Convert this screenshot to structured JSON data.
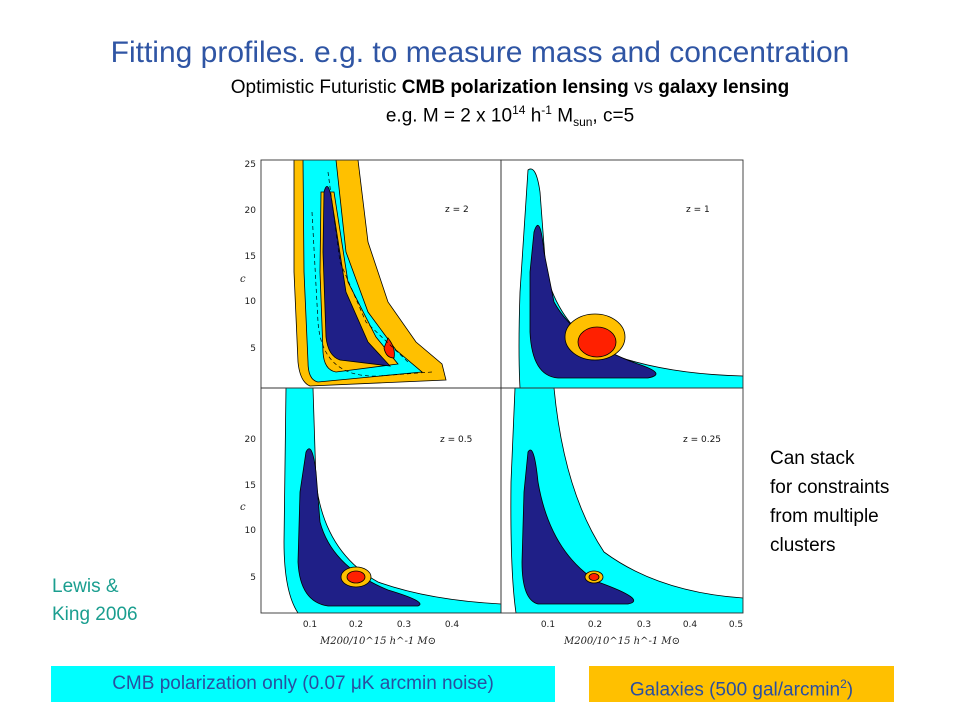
{
  "header": {
    "title": "Fitting profiles. e.g. to measure mass and concentration",
    "subtitle_pre": "Optimistic Futuristic ",
    "subtitle_bold1": "CMB polarization lensing",
    "subtitle_mid": " vs ",
    "subtitle_bold2": "galaxy lensing",
    "example_pre": "e.g. M = 2 x 10",
    "example_exp": "14",
    "example_h": " h",
    "example_hexp": "-1",
    "example_m": " M",
    "example_msub": "sun",
    "example_post": ", c=5"
  },
  "credit": {
    "line1": "Lewis &",
    "line2": "King 2006"
  },
  "note": {
    "lines": [
      "Can stack",
      "for constraints",
      "from multiple",
      "clusters"
    ]
  },
  "legend": {
    "cmb": "CMB polarization only (0.07 μK  arcmin noise)",
    "gal_pre": "Galaxies (500 gal/arcmin",
    "gal_exp": "2",
    "gal_post": ")"
  },
  "colors": {
    "cmb_outer": "#00ffff",
    "inner": "#1f1f87",
    "gal_outer": "#ffc000",
    "gal_inner": "#ff2000",
    "cmb_legend_bg": "#00ffff",
    "gal_legend_bg": "#ffc000",
    "title": "#2f55a4",
    "credit": "#1a9e8f"
  },
  "chart_data": {
    "type": "contour",
    "layout": "2x2 panels",
    "ylabel": "c",
    "xlabel": "M200/10^15 h^-1 M⊙",
    "xlim": [
      0,
      0.5
    ],
    "ylim": [
      0,
      25
    ],
    "x_ticks": [
      "0.1",
      "0.2",
      "0.3",
      "0.4",
      "0.5"
    ],
    "y_ticks_top": [
      "5",
      "10",
      "15",
      "20",
      "25"
    ],
    "y_ticks_bottom": [
      "5",
      "10",
      "15",
      "20"
    ],
    "fiducial": {
      "M": 0.2,
      "c": 5
    },
    "panels": [
      {
        "label": "z = 2",
        "position": "top-left",
        "contours": [
          "CMB 68%",
          "CMB 95%",
          "Galaxies 68%",
          "Galaxies 95%"
        ]
      },
      {
        "label": "z = 1",
        "position": "top-right",
        "contours": [
          "CMB 68%",
          "CMB 95%",
          "Galaxies 68%",
          "Galaxies 95%"
        ]
      },
      {
        "label": "z = 0.5",
        "position": "bottom-left",
        "contours": [
          "CMB 68%",
          "CMB 95%",
          "Galaxies 68%",
          "Galaxies 95%"
        ]
      },
      {
        "label": "z = 0.25",
        "position": "bottom-right",
        "contours": [
          "CMB 68%",
          "CMB 95%",
          "Galaxies 68%",
          "Galaxies 95%"
        ]
      }
    ]
  }
}
